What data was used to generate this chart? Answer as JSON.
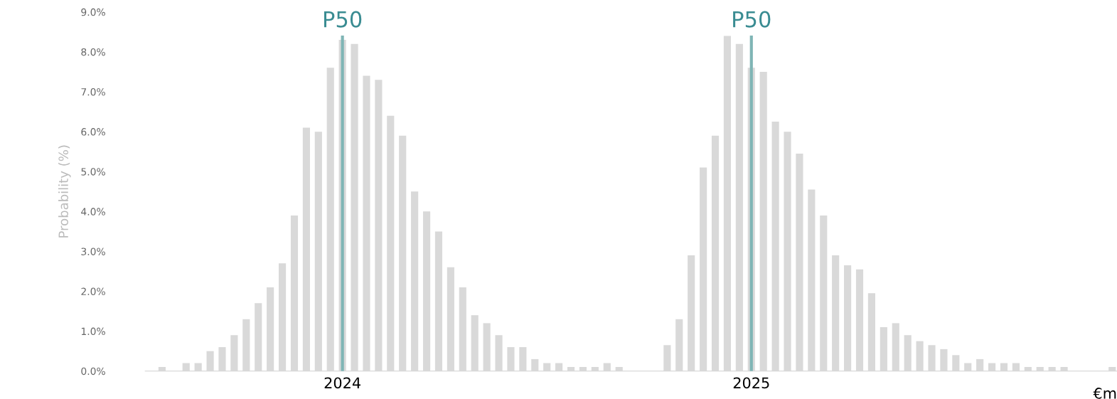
{
  "chart_data": {
    "type": "bar",
    "ylabel": "Probability (%)",
    "xlabel": "€m",
    "categories": [
      null,
      null,
      null,
      null,
      null,
      null,
      null,
      null,
      null,
      null,
      null,
      null,
      null,
      null,
      null,
      "2024",
      null,
      null,
      null,
      null,
      null,
      null,
      null,
      null,
      null,
      null,
      null,
      null,
      null,
      null,
      null,
      null,
      null,
      null,
      null,
      null,
      null,
      null,
      null,
      null,
      null,
      null,
      null,
      null,
      null,
      null,
      null,
      null,
      null,
      "2025",
      null,
      null,
      null,
      null,
      null,
      null,
      null,
      null,
      null,
      null,
      null,
      null,
      null,
      null,
      null,
      null,
      null,
      null,
      null,
      null,
      null,
      null,
      null,
      null,
      null,
      null,
      null,
      null,
      null,
      null
    ],
    "values": [
      0.1,
      null,
      0.2,
      0.2,
      0.5,
      0.6,
      0.9,
      1.3,
      1.7,
      2.1,
      2.7,
      3.9,
      6.1,
      6.0,
      7.6,
      8.3,
      8.2,
      7.4,
      7.3,
      6.4,
      5.9,
      4.5,
      4.0,
      3.5,
      2.6,
      2.1,
      1.4,
      1.2,
      0.9,
      0.6,
      0.6,
      0.3,
      0.2,
      0.2,
      0.1,
      0.1,
      0.1,
      0.2,
      0.1,
      null,
      null,
      null,
      0.65,
      1.3,
      2.9,
      5.1,
      5.9,
      8.4,
      8.2,
      7.6,
      7.5,
      6.25,
      6.0,
      5.45,
      4.55,
      3.9,
      2.9,
      2.65,
      2.55,
      1.95,
      1.1,
      1.2,
      0.9,
      0.75,
      0.65,
      0.55,
      0.4,
      0.2,
      0.3,
      0.2,
      0.2,
      0.2,
      0.1,
      0.1,
      0.1,
      0.1,
      null,
      null,
      null,
      0.1
    ],
    "color": "#d9d9d9",
    "ylim": [
      0,
      9
    ],
    "yticks": [
      {
        "value": 0,
        "label": "0.0%"
      },
      {
        "value": 1,
        "label": "1.0%"
      },
      {
        "value": 2,
        "label": "2.0%"
      },
      {
        "value": 3,
        "label": "3.0%"
      },
      {
        "value": 4,
        "label": "4.0%"
      },
      {
        "value": 5,
        "label": "5.0%"
      },
      {
        "value": 6,
        "label": "6.0%"
      },
      {
        "value": 7,
        "label": "7.0%"
      },
      {
        "value": 8,
        "label": "8.0%"
      },
      {
        "value": 9,
        "label": "9.0%"
      }
    ],
    "ref_lines": [
      {
        "axis": "x",
        "value": "2024",
        "label": "P50",
        "color": "#7fb5b5"
      },
      {
        "axis": "x",
        "value": "2025",
        "label": "P50",
        "color": "#7fb5b5"
      }
    ],
    "grid": false
  }
}
